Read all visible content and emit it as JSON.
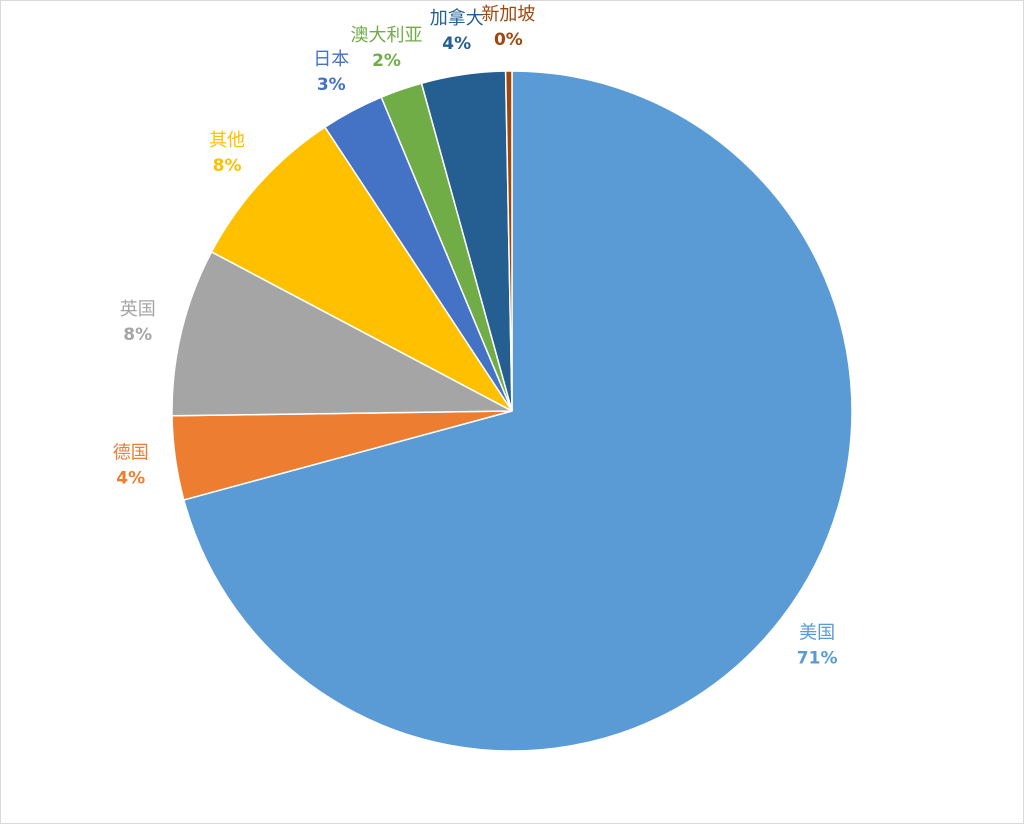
{
  "chart_data": {
    "type": "pie",
    "categories": [
      "美国",
      "德国",
      "英国",
      "其他",
      "日本",
      "澳大利亚",
      "加拿大",
      "新加坡"
    ],
    "values": [
      71,
      4,
      8,
      8,
      3,
      2,
      4,
      0.3
    ],
    "value_labels": [
      "71%",
      "4%",
      "8%",
      "8%",
      "3%",
      "2%",
      "4%",
      "0%"
    ],
    "colors": [
      "#5b9bd5",
      "#ed7d31",
      "#a5a5a5",
      "#ffc000",
      "#4472c4",
      "#70ad47",
      "#255e91",
      "#9e480e"
    ]
  }
}
